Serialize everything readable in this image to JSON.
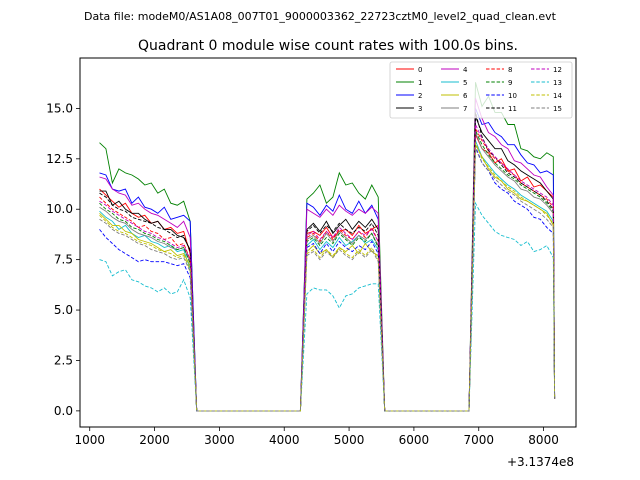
{
  "figure": {
    "suptitle": "Data file: modeM0/AS1A08_007T01_9000003362_22723cztM0_level2_quad_clean.evt"
  },
  "chart_data": {
    "type": "line",
    "title": "Quadrant 0 module wise count rates with 100.0s bins.",
    "xlabel": "",
    "ylabel": "",
    "x_offset_label": "+3.1374e8",
    "xlim": [
      850,
      8500
    ],
    "ylim": [
      -0.8,
      17.5
    ],
    "x_ticks": [
      1000,
      2000,
      3000,
      4000,
      5000,
      6000,
      7000,
      8000
    ],
    "x_tick_labels": [
      "1000",
      "2000",
      "3000",
      "4000",
      "5000",
      "6000",
      "7000",
      "8000"
    ],
    "y_ticks": [
      0,
      2.5,
      5,
      7.5,
      10,
      12.5,
      15
    ],
    "y_tick_labels": [
      "0.0",
      "2.5",
      "5.0",
      "7.5",
      "10.0",
      "12.5",
      "15.0"
    ],
    "grid": false,
    "legend_position": "top-right",
    "legend_columns": 4,
    "x": [
      1150,
      1250,
      1350,
      1450,
      1550,
      1650,
      1750,
      1850,
      1950,
      2050,
      2150,
      2250,
      2350,
      2450,
      2550,
      2650,
      2750,
      2850,
      2950,
      3050,
      3150,
      3250,
      3350,
      3450,
      3550,
      3650,
      3750,
      3850,
      3950,
      4050,
      4150,
      4250,
      4350,
      4450,
      4550,
      4650,
      4750,
      4850,
      4950,
      5050,
      5150,
      5250,
      5350,
      5450,
      5550,
      5650,
      5750,
      5850,
      5950,
      6050,
      6150,
      6250,
      6350,
      6450,
      6550,
      6650,
      6750,
      6850,
      6950,
      7050,
      7150,
      7250,
      7350,
      7450,
      7550,
      7650,
      7750,
      7850,
      7950,
      8050,
      8150
    ],
    "series": [
      {
        "name": "0",
        "color": "#ff0000",
        "dash": "solid",
        "seg1": [
          11.0,
          10.7,
          10.4,
          10.1,
          10.3,
          9.8,
          9.6,
          9.7,
          9.3,
          9.4,
          9.0,
          9.1,
          8.8,
          8.9,
          7.8
        ],
        "seg2": [
          8.8,
          8.9,
          8.7,
          9.1,
          8.6,
          8.9,
          9.0,
          8.7,
          9.2,
          8.8,
          9.0,
          9.2
        ],
        "seg3": [
          13.7,
          13.0,
          12.8,
          12.3,
          12.5,
          11.9,
          12.0,
          11.4,
          11.6,
          11.1,
          11.2,
          10.9,
          10.6
        ]
      },
      {
        "name": "1",
        "color": "#008000",
        "dash": "solid",
        "seg1": [
          13.3,
          13.0,
          11.3,
          12.0,
          11.8,
          11.7,
          11.5,
          11.2,
          11.3,
          10.8,
          11.0,
          10.3,
          10.2,
          10.4,
          9.4
        ],
        "seg2": [
          10.5,
          10.8,
          11.2,
          10.3,
          10.6,
          11.8,
          11.2,
          11.3,
          10.8,
          10.5,
          11.2,
          10.6
        ],
        "seg3": [
          16.3,
          15.1,
          15.6,
          14.8,
          14.8,
          14.2,
          14.2,
          13.0,
          12.9,
          12.6,
          12.5,
          12.8,
          12.6
        ]
      },
      {
        "name": "2",
        "color": "#0000ff",
        "dash": "solid",
        "seg1": [
          11.8,
          11.7,
          11.0,
          10.9,
          11.0,
          10.3,
          10.6,
          10.1,
          10.0,
          9.8,
          10.1,
          9.5,
          9.6,
          9.7,
          9.4
        ],
        "seg2": [
          10.3,
          10.1,
          9.7,
          10.2,
          9.9,
          10.7,
          10.0,
          9.8,
          10.4,
          9.8,
          10.2,
          9.5
        ],
        "seg3": [
          15.0,
          14.2,
          14.3,
          13.8,
          13.6,
          13.2,
          13.2,
          12.7,
          12.3,
          12.2,
          11.8,
          11.9,
          11.7
        ]
      },
      {
        "name": "3",
        "color": "#000000",
        "dash": "solid",
        "seg1": [
          10.9,
          10.9,
          10.2,
          10.4,
          10.0,
          9.8,
          9.8,
          9.5,
          9.3,
          9.4,
          9.0,
          9.0,
          8.7,
          8.6,
          8.0
        ],
        "seg2": [
          9.0,
          9.3,
          8.9,
          9.4,
          8.8,
          9.2,
          9.5,
          9.0,
          9.4,
          9.1,
          9.5,
          9.0
        ],
        "seg3": [
          14.6,
          13.8,
          13.4,
          13.0,
          13.0,
          12.4,
          12.2,
          11.9,
          11.7,
          11.5,
          11.3,
          10.9,
          10.5
        ]
      },
      {
        "name": "4",
        "color": "#bf00bf",
        "dash": "solid",
        "seg1": [
          11.6,
          11.5,
          11.0,
          10.8,
          10.7,
          10.2,
          10.3,
          10.0,
          9.8,
          9.7,
          9.5,
          9.3,
          9.1,
          9.4,
          8.6
        ],
        "seg2": [
          10.0,
          9.8,
          9.6,
          10.0,
          9.7,
          10.2,
          9.9,
          9.7,
          10.0,
          9.8,
          10.1,
          9.8
        ],
        "seg3": [
          15.5,
          14.5,
          13.8,
          13.6,
          13.2,
          13.0,
          12.4,
          12.3,
          12.0,
          11.7,
          11.6,
          11.1,
          10.7
        ]
      },
      {
        "name": "5",
        "color": "#17becf",
        "dash": "solid",
        "seg1": [
          9.9,
          9.6,
          9.4,
          9.0,
          9.2,
          8.8,
          8.6,
          8.7,
          8.4,
          8.3,
          8.1,
          8.2,
          7.9,
          8.0,
          7.0
        ],
        "seg2": [
          8.2,
          8.5,
          8.0,
          8.4,
          8.1,
          8.6,
          8.2,
          8.4,
          8.7,
          8.3,
          8.5,
          8.0
        ],
        "seg3": [
          13.4,
          12.6,
          12.2,
          11.8,
          11.5,
          11.2,
          11.0,
          10.7,
          10.5,
          10.3,
          10.1,
          9.9,
          9.4
        ]
      },
      {
        "name": "6",
        "color": "#bfbf00",
        "dash": "solid",
        "seg1": [
          9.8,
          9.5,
          9.2,
          9.2,
          8.9,
          8.8,
          8.5,
          8.4,
          8.3,
          8.1,
          7.9,
          8.0,
          7.7,
          7.8,
          7.2
        ],
        "seg2": [
          7.9,
          8.2,
          7.8,
          8.0,
          7.6,
          8.1,
          7.9,
          8.2,
          7.8,
          8.3,
          7.9,
          7.7
        ],
        "seg3": [
          13.2,
          12.6,
          12.0,
          11.6,
          11.4,
          11.0,
          10.8,
          10.5,
          10.4,
          10.2,
          10.0,
          9.8,
          9.2
        ]
      },
      {
        "name": "7",
        "color": "#7f7f7f",
        "dash": "solid",
        "seg1": [
          10.1,
          9.9,
          9.6,
          9.4,
          9.3,
          9.0,
          8.8,
          8.7,
          8.6,
          8.4,
          8.3,
          8.1,
          8.0,
          8.1,
          7.4
        ],
        "seg2": [
          8.5,
          8.7,
          8.3,
          8.8,
          8.4,
          8.9,
          8.6,
          8.3,
          8.7,
          8.5,
          8.8,
          8.2
        ],
        "seg3": [
          13.8,
          13.0,
          12.6,
          12.2,
          11.9,
          11.6,
          11.4,
          11.0,
          10.9,
          10.6,
          10.5,
          10.2,
          9.8
        ]
      },
      {
        "name": "8",
        "color": "#ff0000",
        "dash": "dashed",
        "seg1": [
          10.6,
          10.3,
          10.0,
          9.8,
          9.6,
          9.4,
          9.1,
          9.2,
          8.9,
          8.8,
          8.5,
          8.6,
          8.2,
          8.3,
          7.5
        ],
        "seg2": [
          8.6,
          8.8,
          8.4,
          8.9,
          8.5,
          9.0,
          8.7,
          8.5,
          8.9,
          8.6,
          9.1,
          8.4
        ],
        "seg3": [
          14.0,
          13.4,
          12.9,
          12.5,
          12.3,
          11.9,
          11.7,
          11.3,
          11.1,
          10.9,
          10.7,
          10.5,
          10.1
        ]
      },
      {
        "name": "9",
        "color": "#008000",
        "dash": "dashed",
        "seg1": [
          10.3,
          10.0,
          9.8,
          9.5,
          9.4,
          9.1,
          9.0,
          8.8,
          8.7,
          8.5,
          8.4,
          8.2,
          8.0,
          8.1,
          7.3
        ],
        "seg2": [
          8.4,
          8.6,
          8.2,
          8.6,
          8.3,
          8.8,
          8.5,
          8.2,
          8.6,
          8.4,
          8.8,
          8.1
        ],
        "seg3": [
          13.9,
          13.2,
          12.7,
          12.3,
          12.0,
          11.7,
          11.5,
          11.2,
          11.0,
          10.8,
          10.6,
          10.3,
          9.9
        ]
      },
      {
        "name": "10",
        "color": "#0000ff",
        "dash": "dashed",
        "seg1": [
          9.0,
          8.6,
          8.3,
          8.0,
          7.8,
          7.6,
          7.4,
          7.5,
          7.4,
          7.4,
          7.4,
          7.3,
          7.2,
          7.3,
          6.6
        ],
        "seg2": [
          8.1,
          8.3,
          7.8,
          8.3,
          7.9,
          8.4,
          8.1,
          7.9,
          8.2,
          8.0,
          8.4,
          7.8
        ],
        "seg3": [
          13.1,
          12.3,
          11.9,
          11.3,
          11.0,
          10.8,
          10.4,
          10.2,
          10.0,
          9.6,
          9.5,
          9.1,
          8.8
        ]
      },
      {
        "name": "11",
        "color": "#000000",
        "dash": "dashed",
        "seg1": [
          10.8,
          10.6,
          10.2,
          10.0,
          9.9,
          9.6,
          9.5,
          9.4,
          9.3,
          9.1,
          9.0,
          8.8,
          8.6,
          8.7,
          7.9
        ],
        "seg2": [
          8.9,
          9.2,
          8.8,
          9.2,
          8.9,
          9.3,
          9.0,
          8.8,
          9.1,
          8.9,
          9.3,
          8.7
        ],
        "seg3": [
          14.8,
          13.6,
          12.9,
          12.6,
          12.2,
          11.8,
          11.6,
          11.3,
          11.1,
          10.9,
          10.7,
          10.4,
          10.0
        ]
      },
      {
        "name": "12",
        "color": "#bf00bf",
        "dash": "dashed",
        "seg1": [
          10.4,
          10.2,
          9.9,
          9.7,
          9.5,
          9.3,
          9.1,
          8.9,
          8.8,
          8.6,
          8.5,
          8.3,
          8.1,
          8.2,
          7.5
        ],
        "seg2": [
          8.7,
          8.9,
          8.5,
          8.9,
          8.6,
          9.1,
          8.8,
          8.5,
          8.9,
          8.7,
          9.0,
          8.4
        ],
        "seg3": [
          14.2,
          13.5,
          13.0,
          12.6,
          12.3,
          12.0,
          11.7,
          11.4,
          11.2,
          11.0,
          10.8,
          10.6,
          10.2
        ]
      },
      {
        "name": "13",
        "color": "#17becf",
        "dash": "dashed",
        "seg1": [
          7.5,
          7.4,
          6.7,
          6.9,
          7.0,
          6.5,
          6.4,
          6.2,
          6.1,
          5.9,
          6.1,
          5.8,
          5.9,
          6.5,
          5.6
        ],
        "seg2": [
          5.8,
          6.1,
          6.0,
          6.0,
          5.7,
          5.1,
          5.7,
          5.8,
          6.1,
          6.2,
          6.3,
          6.3
        ],
        "seg3": [
          10.3,
          9.7,
          9.3,
          8.9,
          8.7,
          8.6,
          8.5,
          8.2,
          8.4,
          7.9,
          8.0,
          8.2,
          7.6
        ]
      },
      {
        "name": "14",
        "color": "#bfbf00",
        "dash": "dashed",
        "seg1": [
          9.7,
          9.4,
          9.1,
          8.9,
          8.8,
          8.6,
          8.4,
          8.3,
          8.2,
          8.0,
          7.9,
          7.8,
          7.6,
          7.7,
          7.0
        ],
        "seg2": [
          7.8,
          8.0,
          7.6,
          8.0,
          7.7,
          8.1,
          7.8,
          7.6,
          8.0,
          7.7,
          8.1,
          7.5
        ],
        "seg3": [
          13.3,
          12.5,
          12.1,
          11.7,
          11.4,
          11.1,
          10.9,
          10.6,
          10.4,
          10.2,
          10.0,
          9.7,
          9.3
        ]
      },
      {
        "name": "15",
        "color": "#7f7f7f",
        "dash": "dashed",
        "seg1": [
          9.5,
          9.3,
          9.0,
          8.8,
          8.7,
          8.5,
          8.3,
          8.2,
          8.0,
          7.9,
          7.8,
          7.6,
          7.5,
          7.6,
          6.9
        ],
        "seg2": [
          7.7,
          7.9,
          7.5,
          7.9,
          7.6,
          8.0,
          7.7,
          7.5,
          7.9,
          7.6,
          8.0,
          7.4
        ],
        "seg3": [
          13.0,
          12.3,
          11.9,
          11.5,
          11.2,
          10.9,
          10.7,
          10.4,
          10.2,
          10.0,
          9.8,
          9.5,
          9.1
        ]
      }
    ]
  }
}
